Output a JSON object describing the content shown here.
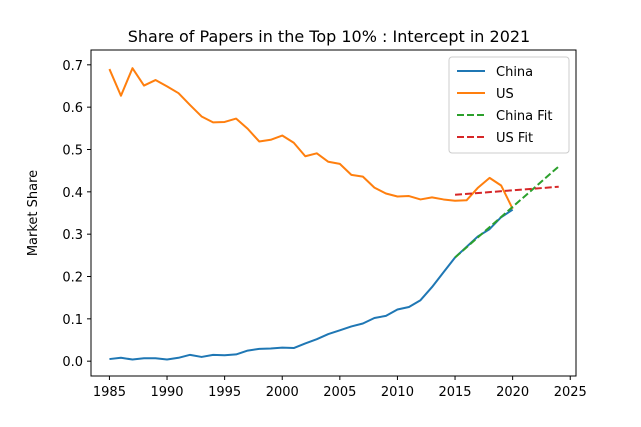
{
  "chart_data": {
    "type": "line",
    "title": "Share of Papers in the Top 10% : Intercept in 2021",
    "xlabel": "",
    "ylabel": "Market Share",
    "xlim": [
      1983.4,
      2025.5
    ],
    "ylim": [
      -0.035,
      0.735
    ],
    "x_ticks": [
      1985,
      1990,
      1995,
      2000,
      2005,
      2010,
      2015,
      2020,
      2025
    ],
    "x_tick_labels": [
      "1985",
      "1990",
      "1995",
      "2000",
      "2005",
      "2010",
      "2015",
      "2020",
      "2025"
    ],
    "y_ticks": [
      0.0,
      0.1,
      0.2,
      0.3,
      0.4,
      0.5,
      0.6,
      0.7
    ],
    "y_tick_labels": [
      "0.0",
      "0.1",
      "0.2",
      "0.3",
      "0.4",
      "0.5",
      "0.6",
      "0.7"
    ],
    "grid": false,
    "legend_position": "top-right",
    "series": [
      {
        "name": "China",
        "color": "#1f77b4",
        "style": "solid",
        "x": [
          1985,
          1986,
          1987,
          1988,
          1989,
          1990,
          1991,
          1992,
          1993,
          1994,
          1995,
          1996,
          1997,
          1998,
          1999,
          2000,
          2001,
          2002,
          2003,
          2004,
          2005,
          2006,
          2007,
          2008,
          2009,
          2010,
          2011,
          2012,
          2013,
          2014,
          2015,
          2016,
          2017,
          2018,
          2019,
          2020
        ],
        "y": [
          0.005,
          0.008,
          0.004,
          0.007,
          0.007,
          0.004,
          0.008,
          0.015,
          0.01,
          0.015,
          0.014,
          0.016,
          0.025,
          0.029,
          0.03,
          0.032,
          0.031,
          0.042,
          0.052,
          0.064,
          0.073,
          0.082,
          0.089,
          0.102,
          0.107,
          0.122,
          0.128,
          0.144,
          0.175,
          0.21,
          0.245,
          0.27,
          0.295,
          0.312,
          0.34,
          0.358
        ]
      },
      {
        "name": "US",
        "color": "#ff7f0e",
        "style": "solid",
        "x": [
          1985,
          1986,
          1987,
          1988,
          1989,
          1990,
          1991,
          1992,
          1993,
          1994,
          1995,
          1996,
          1997,
          1998,
          1999,
          2000,
          2001,
          2002,
          2003,
          2004,
          2005,
          2006,
          2007,
          2008,
          2009,
          2010,
          2011,
          2012,
          2013,
          2014,
          2015,
          2016,
          2017,
          2018,
          2019,
          2020
        ],
        "y": [
          0.69,
          0.627,
          0.692,
          0.651,
          0.664,
          0.649,
          0.633,
          0.605,
          0.578,
          0.564,
          0.565,
          0.573,
          0.549,
          0.519,
          0.523,
          0.533,
          0.516,
          0.484,
          0.491,
          0.471,
          0.466,
          0.44,
          0.436,
          0.41,
          0.396,
          0.389,
          0.39,
          0.382,
          0.387,
          0.382,
          0.379,
          0.38,
          0.41,
          0.433,
          0.415,
          0.36
        ]
      },
      {
        "name": "China Fit",
        "color": "#2ca02c",
        "style": "dashed",
        "x": [
          2015,
          2024
        ],
        "y": [
          0.245,
          0.46
        ]
      },
      {
        "name": "US Fit",
        "color": "#d62728",
        "style": "dashed",
        "x": [
          2015,
          2024
        ],
        "y": [
          0.393,
          0.412
        ]
      }
    ]
  }
}
